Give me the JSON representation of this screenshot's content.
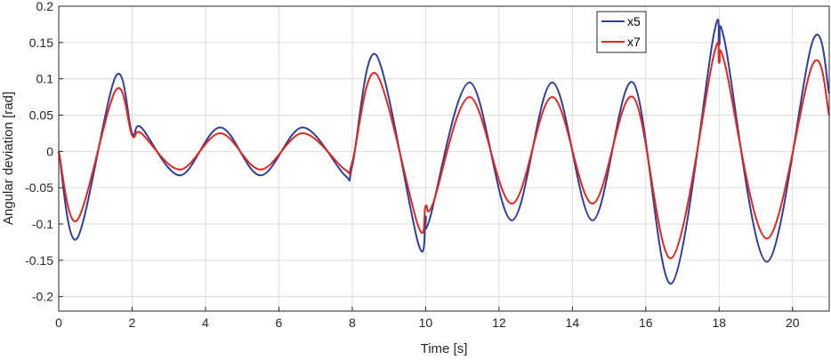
{
  "chart_data": {
    "type": "line",
    "xlabel": "Time [s]",
    "ylabel": "Angular deviation [rad]",
    "xlim": [
      0,
      21
    ],
    "ylim": [
      -0.22,
      0.2
    ],
    "x_ticks": [
      0,
      2,
      4,
      6,
      8,
      10,
      12,
      14,
      16,
      18,
      20
    ],
    "x_tick_labels": [
      "0",
      "2",
      "4",
      "6",
      "8",
      "10",
      "12",
      "14",
      "16",
      "18",
      "20"
    ],
    "y_ticks": [
      0.2,
      0.15,
      0.1,
      0.05,
      0,
      -0.05,
      -0.1,
      -0.15,
      -0.2
    ],
    "y_tick_labels": [
      "0.2",
      "0.15",
      "0.1",
      "0.05",
      "0",
      "-0.05",
      "-0.1",
      "-0.15",
      "-0.2"
    ],
    "grid": true,
    "legend_position": "top-right",
    "series": [
      {
        "name": "x5",
        "color": "#2e3f9e",
        "points": [
          [
            0,
            0
          ],
          [
            0.5,
            -0.12
          ],
          [
            1.55,
            0.103
          ],
          [
            2.0,
            0.025
          ],
          [
            2.25,
            0.033
          ],
          [
            3.3,
            -0.033
          ],
          [
            4.4,
            0.033
          ],
          [
            5.5,
            -0.033
          ],
          [
            6.65,
            0.033
          ],
          [
            7.8,
            -0.033
          ],
          [
            8.0,
            -0.02
          ],
          [
            8.65,
            0.133
          ],
          [
            9.8,
            -0.127
          ],
          [
            10.0,
            -0.09
          ],
          [
            10.1,
            -0.095
          ],
          [
            11.2,
            0.095
          ],
          [
            12.35,
            -0.095
          ],
          [
            13.45,
            0.095
          ],
          [
            14.55,
            -0.095
          ],
          [
            15.65,
            0.095
          ],
          [
            16.7,
            -0.182
          ],
          [
            17.85,
            0.16
          ],
          [
            18.0,
            0.147
          ],
          [
            18.15,
            0.152
          ],
          [
            19.3,
            -0.152
          ],
          [
            20.55,
            0.152
          ],
          [
            21.0,
            0.08
          ]
        ]
      },
      {
        "name": "x7",
        "color": "#e8241e",
        "points": [
          [
            0,
            0
          ],
          [
            0.5,
            -0.095
          ],
          [
            1.55,
            0.084
          ],
          [
            2.0,
            0.022
          ],
          [
            2.25,
            0.025
          ],
          [
            3.3,
            -0.025
          ],
          [
            4.4,
            0.025
          ],
          [
            5.5,
            -0.025
          ],
          [
            6.65,
            0.025
          ],
          [
            7.8,
            -0.025
          ],
          [
            8.0,
            -0.015
          ],
          [
            8.65,
            0.107
          ],
          [
            9.8,
            -0.103
          ],
          [
            10.0,
            -0.075
          ],
          [
            10.2,
            -0.072
          ],
          [
            11.2,
            0.075
          ],
          [
            12.35,
            -0.072
          ],
          [
            13.45,
            0.075
          ],
          [
            14.55,
            -0.072
          ],
          [
            15.65,
            0.075
          ],
          [
            16.7,
            -0.147
          ],
          [
            17.85,
            0.132
          ],
          [
            18.0,
            0.122
          ],
          [
            18.15,
            0.122
          ],
          [
            19.3,
            -0.12
          ],
          [
            20.55,
            0.12
          ],
          [
            21.0,
            0.05
          ]
        ]
      }
    ]
  }
}
